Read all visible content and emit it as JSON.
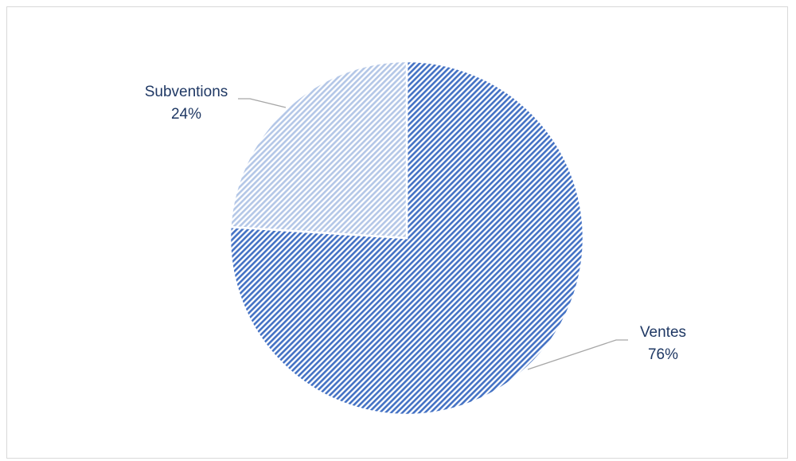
{
  "chart_data": {
    "type": "pie",
    "title": "",
    "categories": [
      "Ventes",
      "Subventions"
    ],
    "values": [
      76,
      24
    ],
    "value_suffix": "%",
    "colors": [
      "#4472c4",
      "#b4c7e7"
    ],
    "legend": "none",
    "data_labels": "outside-with-leader-lines"
  }
}
